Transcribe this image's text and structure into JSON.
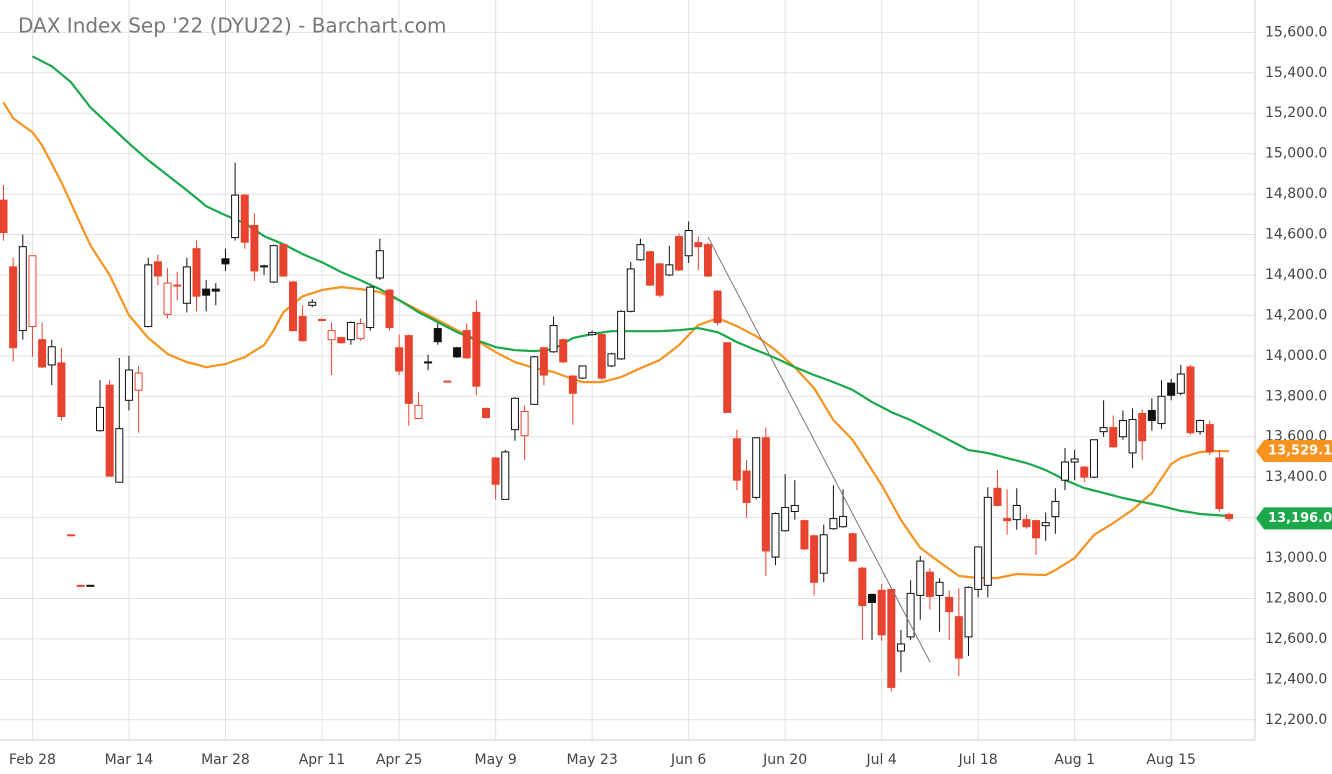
{
  "chart_data": {
    "type": "candlestick",
    "title": "DAX Index Sep '22 (DYU22) - Barchart.com",
    "categories": [
      null,
      null,
      null,
      "Feb 28",
      null,
      null,
      null,
      null,
      null,
      null,
      null,
      null,
      null,
      "Mar 14",
      null,
      null,
      null,
      null,
      null,
      null,
      null,
      null,
      null,
      "Mar 28",
      null,
      null,
      null,
      null,
      null,
      null,
      null,
      null,
      null,
      "Apr 11",
      null,
      null,
      null,
      null,
      null,
      null,
      null,
      "Apr 25",
      null,
      null,
      null,
      null,
      null,
      null,
      null,
      null,
      null,
      "May 9",
      null,
      null,
      null,
      null,
      null,
      null,
      null,
      null,
      null,
      "May 23",
      null,
      null,
      null,
      null,
      null,
      null,
      null,
      null,
      null,
      "Jun 6",
      null,
      null,
      null,
      null,
      null,
      null,
      null,
      null,
      null,
      "Jun 20",
      null,
      null,
      null,
      null,
      null,
      null,
      null,
      null,
      null,
      "Jul 4",
      null,
      null,
      null,
      null,
      null,
      null,
      null,
      null,
      null,
      "Jul 18",
      null,
      null,
      null,
      null,
      null,
      null,
      null,
      null,
      null,
      "Aug 1",
      null,
      null,
      null,
      null,
      null,
      null,
      null,
      null,
      null,
      "Aug 15",
      null,
      null,
      null,
      null,
      null,
      null
    ],
    "open": [
      14770,
      14440,
      14125,
      14145,
      14080,
      13955,
      13965,
      13115,
      12865,
      12865,
      13630,
      13855,
      13375,
      13780,
      13830,
      14145,
      14465,
      14205,
      14345,
      14260,
      14530,
      14330,
      14330,
      14480,
      14585,
      14795,
      14645,
      14440,
      14365,
      14550,
      14365,
      14195,
      14250,
      14180,
      14080,
      14090,
      14080,
      14085,
      14140,
      14385,
      14325,
      14040,
      14100,
      13690,
      13965,
      14135,
      13875,
      14040,
      14125,
      14215,
      13740,
      13495,
      13290,
      13635,
      13605,
      13760,
      14040,
      14020,
      14080,
      13900,
      13890,
      14105,
      14105,
      13950,
      13985,
      14220,
      14475,
      14515,
      14455,
      14400,
      14590,
      14495,
      14560,
      14550,
      14320,
      14065,
      13590,
      13430,
      13300,
      13595,
      13005,
      13135,
      13230,
      13185,
      13110,
      12925,
      13145,
      13155,
      13120,
      12950,
      12820,
      12840,
      12845,
      12540,
      12610,
      12815,
      12930,
      12815,
      12805,
      12710,
      12610,
      12845,
      12865,
      13345,
      13195,
      13190,
      13190,
      13185,
      13160,
      13205,
      13385,
      13475,
      13450,
      13400,
      13625,
      13645,
      13600,
      13520,
      13715,
      13730,
      13665,
      13865,
      13815,
      13945,
      13625,
      13660,
      13495,
      13215
    ],
    "high": [
      14845,
      14485,
      14600,
      14495,
      14165,
      14080,
      14040,
      13115,
      12865,
      12865,
      13880,
      13880,
      13990,
      14000,
      13950,
      14485,
      14500,
      14435,
      14415,
      14485,
      14570,
      14375,
      14360,
      14530,
      14955,
      14800,
      14705,
      14450,
      14550,
      14555,
      14370,
      14250,
      14280,
      14185,
      14165,
      14095,
      14170,
      14185,
      14345,
      14580,
      14330,
      14105,
      14105,
      13820,
      14005,
      14160,
      13875,
      14045,
      14160,
      14275,
      13745,
      13500,
      13535,
      13795,
      13755,
      14000,
      14045,
      14195,
      14085,
      13905,
      13950,
      14125,
      14110,
      14015,
      14225,
      14465,
      14580,
      14520,
      14460,
      14545,
      14605,
      14665,
      14590,
      14560,
      14325,
      14065,
      13635,
      13485,
      13595,
      13645,
      13225,
      13415,
      13385,
      13190,
      13115,
      13165,
      13360,
      13340,
      13125,
      12955,
      12825,
      12870,
      12850,
      12645,
      12890,
      13010,
      12950,
      12900,
      12840,
      12850,
      12860,
      13055,
      13350,
      13435,
      13340,
      13345,
      13215,
      13190,
      13225,
      13345,
      13545,
      13535,
      13455,
      13585,
      13780,
      13705,
      13730,
      13740,
      13735,
      13790,
      13880,
      13885,
      13955,
      13955,
      13685,
      13680,
      13535,
      13225
    ],
    "low": [
      14570,
      13970,
      14080,
      13995,
      13940,
      13855,
      13680,
      13115,
      12865,
      12865,
      13625,
      13405,
      13375,
      13730,
      13620,
      14140,
      14350,
      14185,
      14275,
      14215,
      14220,
      14220,
      14250,
      14420,
      14570,
      14530,
      14370,
      14400,
      14360,
      14390,
      14120,
      14070,
      14240,
      14170,
      13905,
      14060,
      14055,
      14075,
      14125,
      14375,
      14125,
      13905,
      13655,
      13690,
      13930,
      14055,
      13875,
      13990,
      13985,
      13805,
      13690,
      13290,
      13290,
      13580,
      13485,
      13760,
      13855,
      14015,
      13965,
      13660,
      13885,
      14100,
      13880,
      13945,
      13980,
      14215,
      14470,
      14345,
      14290,
      14395,
      14420,
      14460,
      14425,
      14390,
      14150,
      13720,
      13335,
      13200,
      13290,
      12910,
      12965,
      13130,
      13190,
      13040,
      12815,
      12880,
      13140,
      13150,
      12985,
      12595,
      12595,
      12590,
      12340,
      12435,
      12595,
      12695,
      12745,
      12635,
      12595,
      12415,
      12515,
      12805,
      12805,
      13260,
      13115,
      13140,
      13145,
      13015,
      13085,
      13120,
      13335,
      13385,
      13375,
      13395,
      13600,
      13545,
      13585,
      13445,
      13485,
      13630,
      13640,
      13780,
      13805,
      13610,
      13610,
      13510,
      13230,
      13180
    ],
    "close": [
      14610,
      14040,
      14540,
      14495,
      13945,
      14045,
      13700,
      13115,
      12865,
      12865,
      13745,
      13405,
      13640,
      13930,
      13915,
      14450,
      14395,
      14360,
      14350,
      14440,
      14295,
      14300,
      14320,
      14455,
      14795,
      14562,
      14420,
      14445,
      14545,
      14395,
      14125,
      14075,
      14265,
      14175,
      14125,
      14065,
      14165,
      14160,
      14340,
      14520,
      14140,
      13925,
      13765,
      13755,
      13970,
      14070,
      13875,
      13995,
      13990,
      13850,
      13695,
      13365,
      13525,
      13790,
      13725,
      13995,
      13905,
      14150,
      13970,
      13815,
      13950,
      14115,
      13890,
      14010,
      14220,
      14430,
      14550,
      14350,
      14300,
      14450,
      14425,
      14620,
      14540,
      14395,
      14165,
      13720,
      13385,
      13275,
      13595,
      13035,
      13220,
      13250,
      13260,
      13045,
      12880,
      13115,
      13195,
      13205,
      12985,
      12765,
      12780,
      12620,
      12360,
      12575,
      12825,
      12985,
      12810,
      12880,
      12735,
      12505,
      12855,
      13055,
      13300,
      13260,
      13185,
      13260,
      13155,
      13100,
      13175,
      13280,
      13475,
      13490,
      13400,
      13585,
      13645,
      13550,
      13680,
      13685,
      13580,
      13680,
      13800,
      13805,
      13910,
      13620,
      13680,
      13525,
      13245,
      13196
    ],
    "up_color": "#111111",
    "down_color": "#e8432e",
    "series": [
      {
        "color": "#f7931e",
        "values": [
          15254,
          15175,
          15140,
          15106,
          15041,
          14950,
          14859,
          14755,
          14650,
          14547,
          14473,
          14399,
          14300,
          14201,
          14145,
          14088,
          14049,
          14009,
          13989,
          13969,
          13957,
          13944,
          13952,
          13959,
          13977,
          13994,
          14024,
          14053,
          14127,
          14216,
          14256,
          14295,
          14310,
          14325,
          14333,
          14340,
          14335,
          14330,
          14323,
          14315,
          14295,
          14275,
          14251,
          14226,
          14202,
          14177,
          14152,
          14127,
          14103,
          14078,
          14048,
          14018,
          13994,
          13969,
          13954,
          13939,
          13930,
          13920,
          13903,
          13885,
          13870,
          13870,
          13870,
          13883,
          13895,
          13917,
          13939,
          13959,
          13979,
          14016,
          14053,
          14103,
          14152,
          14169,
          14186,
          14167,
          14147,
          14122,
          14097,
          14063,
          14028,
          13986,
          13944,
          13892,
          13840,
          13761,
          13682,
          13633,
          13584,
          13510,
          13435,
          13361,
          13275,
          13188,
          13119,
          13050,
          13015,
          12980,
          12946,
          12911,
          12906,
          12901,
          12901,
          12901,
          12911,
          12921,
          12919,
          12917,
          12916,
          12941,
          12970,
          13000,
          13057,
          13114,
          13144,
          13173,
          13206,
          13238,
          13280,
          13322,
          13394,
          13465,
          13495,
          13510,
          13524,
          13529,
          13529,
          13529.1
        ]
      },
      {
        "color": "#1aa84b",
        "values": [
          null,
          null,
          null,
          15481,
          15457,
          15432,
          15393,
          15353,
          15291,
          15229,
          15185,
          15140,
          15096,
          15051,
          15009,
          14967,
          14930,
          14893,
          14856,
          14819,
          14780,
          14740,
          14718,
          14695,
          14676,
          14656,
          14624,
          14592,
          14572,
          14552,
          14528,
          14503,
          14483,
          14463,
          14439,
          14414,
          14394,
          14374,
          14352,
          14330,
          14303,
          14275,
          14246,
          14216,
          14192,
          14167,
          14142,
          14117,
          14098,
          14078,
          14061,
          14043,
          14036,
          14028,
          14026,
          14023,
          14028,
          14033,
          14061,
          14088,
          14098,
          14107,
          14115,
          14122,
          14122,
          14122,
          14122,
          14122,
          14122,
          14125,
          14127,
          14132,
          14137,
          14127,
          14117,
          14093,
          14068,
          14048,
          14028,
          14009,
          13989,
          13967,
          13944,
          13925,
          13905,
          13888,
          13870,
          13851,
          13831,
          13801,
          13771,
          13747,
          13722,
          13702,
          13682,
          13658,
          13633,
          13609,
          13584,
          13559,
          13534,
          13527,
          13519,
          13507,
          13494,
          13482,
          13470,
          13453,
          13435,
          13411,
          13386,
          13366,
          13346,
          13334,
          13322,
          13310,
          13297,
          13287,
          13277,
          13267,
          13257,
          13245,
          13233,
          13226,
          13218,
          13215,
          13211,
          13208
        ]
      }
    ],
    "price_labels": [
      {
        "value": 13529.1,
        "label": "13,529.1",
        "color": "#f7931e"
      },
      {
        "value": 13196,
        "label": "13,196.0",
        "color": "#1aa84b"
      }
    ],
    "ylim": [
      12100,
      15760
    ],
    "yticks": [
      {
        "value": 12200,
        "label": "12,200.0"
      },
      {
        "value": 12400,
        "label": "12,400.0"
      },
      {
        "value": 12600,
        "label": "12,600.0"
      },
      {
        "value": 12800,
        "label": "12,800.0"
      },
      {
        "value": 13000,
        "label": "13,000.0"
      },
      {
        "value": 13200,
        "label": "13,200.0"
      },
      {
        "value": 13400,
        "label": "13,400.0"
      },
      {
        "value": 13600,
        "label": "13,600.0"
      },
      {
        "value": 13800,
        "label": "13,800.0"
      },
      {
        "value": 14000,
        "label": "14,000.0"
      },
      {
        "value": 14200,
        "label": "14,200.0"
      },
      {
        "value": 14400,
        "label": "14,400.0"
      },
      {
        "value": 14600,
        "label": "14,600.0"
      },
      {
        "value": 14800,
        "label": "14,800.0"
      },
      {
        "value": 15000,
        "label": "15,000.0"
      },
      {
        "value": 15200,
        "label": "15,200.0"
      },
      {
        "value": 15400,
        "label": "15,400.0"
      },
      {
        "value": 15600,
        "label": "15,600.0"
      }
    ],
    "grid": true
  }
}
